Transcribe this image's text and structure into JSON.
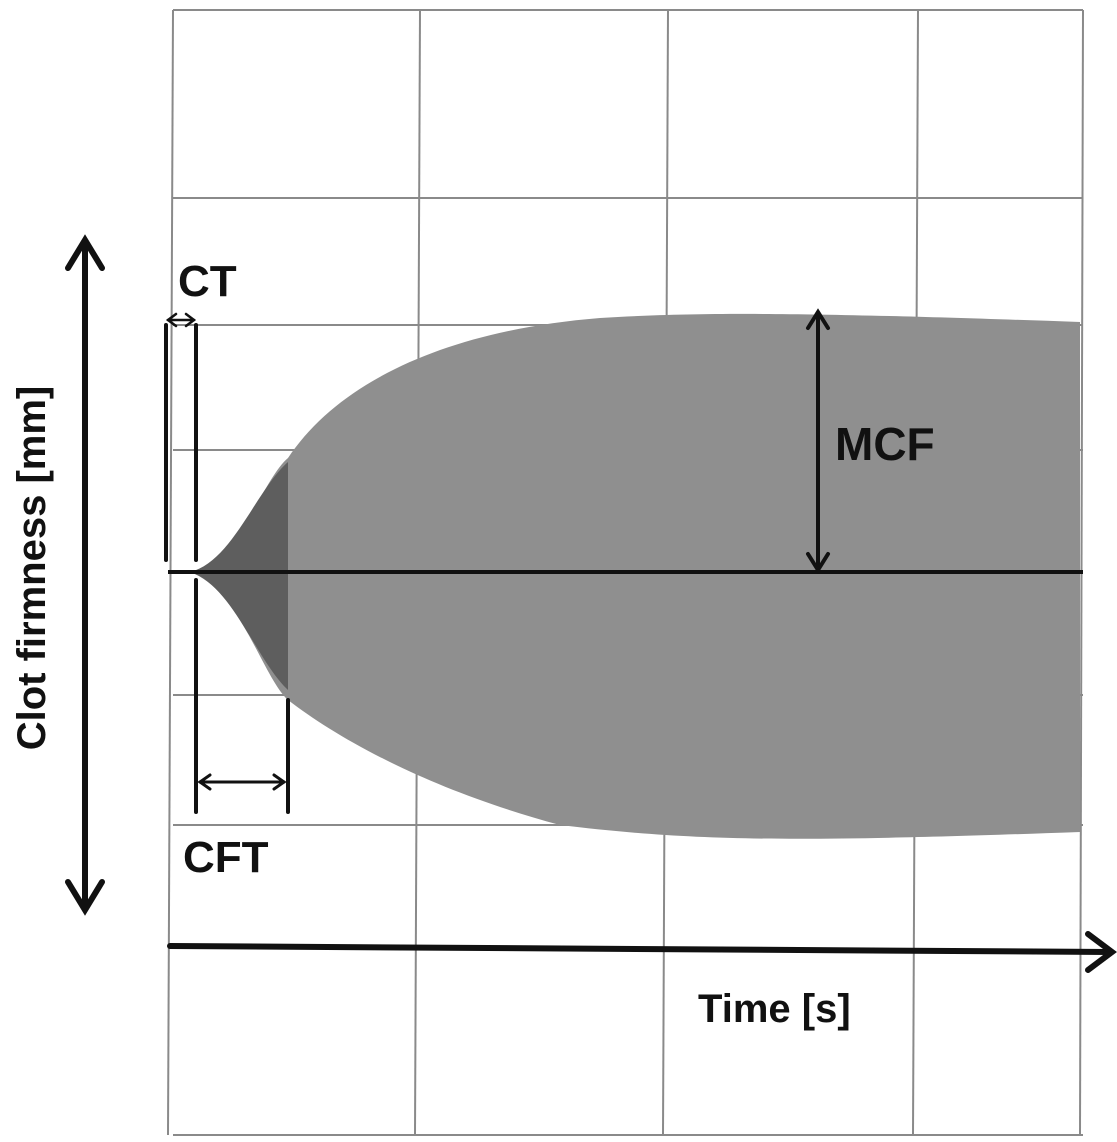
{
  "labels": {
    "y_axis": "Clot firmness [mm]",
    "x_axis": "Time [s]",
    "ct": "CT",
    "cft": "CFT",
    "mcf": "MCF"
  },
  "colors": {
    "grid": "#8a8a8a",
    "trace_fill": "#8f8f8f",
    "trace_dark": "#5e5e5e",
    "ink": "#111111",
    "background": "#ffffff"
  }
}
